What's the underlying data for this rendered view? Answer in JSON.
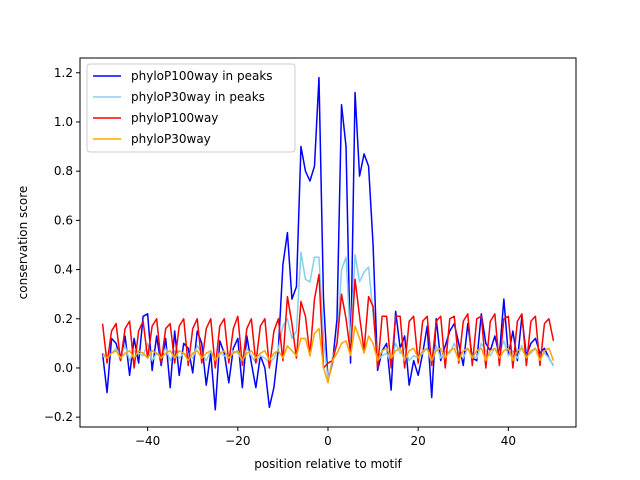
{
  "chart_data": {
    "type": "line",
    "title": "",
    "xlabel": "position relative to motif",
    "ylabel": "conservation score",
    "xlim": [
      -55,
      55
    ],
    "ylim": [
      -0.24,
      1.26
    ],
    "xticks": [
      -40,
      -20,
      0,
      20,
      40
    ],
    "yticks": [
      -0.2,
      0.0,
      0.2,
      0.4,
      0.6,
      0.8,
      1.0,
      1.2
    ],
    "xtick_labels": [
      "−40",
      "−20",
      "0",
      "20",
      "40"
    ],
    "ytick_labels": [
      "−0.2",
      "0.0",
      "0.2",
      "0.4",
      "0.6",
      "0.8",
      "1.0",
      "1.2"
    ],
    "grid": false,
    "legend_position": "top-left",
    "x": [
      -50,
      -49,
      -48,
      -47,
      -46,
      -45,
      -44,
      -43,
      -42,
      -41,
      -40,
      -39,
      -38,
      -37,
      -36,
      -35,
      -34,
      -33,
      -32,
      -31,
      -30,
      -29,
      -28,
      -27,
      -26,
      -25,
      -24,
      -23,
      -22,
      -21,
      -20,
      -19,
      -18,
      -17,
      -16,
      -15,
      -14,
      -13,
      -12,
      -11,
      -10,
      -9,
      -8,
      -7,
      -6,
      -5,
      -4,
      -3,
      -2,
      -1,
      0,
      1,
      2,
      3,
      4,
      5,
      6,
      7,
      8,
      9,
      10,
      11,
      12,
      13,
      14,
      15,
      16,
      17,
      18,
      19,
      20,
      21,
      22,
      23,
      24,
      25,
      26,
      27,
      28,
      29,
      30,
      31,
      32,
      33,
      34,
      35,
      36,
      37,
      38,
      39,
      40,
      41,
      42,
      43,
      44,
      45,
      46,
      47,
      48,
      49,
      50
    ],
    "series": [
      {
        "name": "phyloP100way in peaks",
        "color": "#0000ff",
        "values": [
          0.06,
          -0.1,
          0.12,
          0.1,
          0.03,
          0.13,
          -0.03,
          0.12,
          0.02,
          0.21,
          0.22,
          -0.01,
          0.13,
          0.01,
          0.12,
          -0.08,
          0.15,
          -0.03,
          0.1,
          0.08,
          -0.02,
          0.15,
          0.1,
          -0.07,
          0.06,
          -0.17,
          0.11,
          0.06,
          -0.06,
          0.08,
          0.12,
          -0.08,
          0.13,
          0.02,
          -0.08,
          0.05,
          0.0,
          -0.16,
          -0.08,
          0.08,
          0.42,
          0.55,
          0.28,
          0.33,
          0.9,
          0.8,
          0.76,
          0.82,
          1.18,
          0.28,
          -0.05,
          0.02,
          0.2,
          1.07,
          0.9,
          0.02,
          1.12,
          0.78,
          0.87,
          0.82,
          0.5,
          -0.01,
          0.07,
          0.1,
          -0.09,
          0.23,
          0.08,
          0.13,
          -0.07,
          0.03,
          -0.03,
          0.06,
          0.17,
          -0.12,
          0.2,
          0.03,
          0.09,
          0.15,
          0.18,
          0.1,
          0.01,
          0.18,
          0.04,
          0.03,
          0.22,
          0.1,
          0.07,
          0.13,
          0.05,
          0.28,
          0.05,
          0.15,
          0.03,
          0.21,
          0.05,
          0.1,
          0.12,
          0.06,
          0.08,
          0.04,
          0.01
        ]
      },
      {
        "name": "phyloP30way in peaks",
        "color": "#87ceeb",
        "values": [
          0.05,
          0.04,
          0.06,
          0.08,
          0.05,
          0.09,
          0.03,
          0.07,
          0.06,
          0.05,
          0.1,
          0.03,
          0.06,
          0.05,
          0.08,
          0.03,
          0.07,
          0.04,
          0.06,
          0.05,
          0.04,
          0.09,
          0.06,
          0.03,
          0.07,
          0.02,
          0.06,
          0.05,
          0.04,
          0.07,
          0.06,
          0.03,
          0.08,
          0.05,
          0.02,
          0.05,
          0.04,
          0.02,
          0.04,
          0.08,
          0.17,
          0.2,
          0.12,
          0.15,
          0.47,
          0.36,
          0.35,
          0.45,
          0.45,
          0.12,
          -0.05,
          0.04,
          0.1,
          0.4,
          0.45,
          0.1,
          0.46,
          0.35,
          0.39,
          0.41,
          0.22,
          0.03,
          0.05,
          0.06,
          0.02,
          0.1,
          0.06,
          0.08,
          0.03,
          0.05,
          0.04,
          0.06,
          0.08,
          0.02,
          0.09,
          0.04,
          0.07,
          0.06,
          0.1,
          0.06,
          0.04,
          0.08,
          0.05,
          0.04,
          0.1,
          0.07,
          0.05,
          0.08,
          0.06,
          0.11,
          0.05,
          0.07,
          0.04,
          0.09,
          0.05,
          0.06,
          0.08,
          0.05,
          0.06,
          0.04,
          0.01
        ]
      },
      {
        "name": "phyloP100way",
        "color": "#ff0000",
        "values": [
          0.18,
          0.02,
          0.15,
          0.18,
          0.03,
          0.16,
          0.19,
          0.0,
          0.15,
          0.19,
          0.04,
          0.17,
          0.2,
          0.02,
          0.16,
          0.18,
          0.02,
          0.17,
          0.2,
          0.01,
          0.16,
          0.2,
          0.02,
          0.16,
          0.2,
          0.0,
          0.17,
          0.2,
          0.02,
          0.16,
          0.21,
          0.01,
          0.16,
          0.2,
          0.02,
          0.17,
          0.2,
          0.0,
          0.15,
          0.2,
          0.03,
          0.29,
          0.18,
          0.04,
          0.27,
          0.21,
          0.05,
          0.28,
          0.38,
          0.0,
          0.02,
          0.03,
          0.1,
          0.3,
          0.2,
          0.06,
          0.36,
          0.21,
          0.07,
          0.29,
          0.25,
          0.0,
          0.21,
          0.21,
          0.0,
          0.21,
          0.21,
          0.0,
          0.19,
          0.21,
          0.02,
          0.19,
          0.21,
          0.01,
          0.19,
          0.21,
          0.0,
          0.2,
          0.21,
          0.02,
          0.19,
          0.22,
          0.01,
          0.2,
          0.21,
          0.0,
          0.19,
          0.22,
          0.01,
          0.2,
          0.21,
          0.0,
          0.19,
          0.22,
          0.01,
          0.19,
          0.21,
          0.01,
          0.18,
          0.2,
          0.11
        ]
      },
      {
        "name": "phyloP30way",
        "color": "#ffa500",
        "values": [
          0.06,
          0.04,
          0.06,
          0.07,
          0.04,
          0.06,
          0.07,
          0.04,
          0.07,
          0.06,
          0.04,
          0.07,
          0.06,
          0.04,
          0.06,
          0.07,
          0.04,
          0.07,
          0.06,
          0.03,
          0.06,
          0.07,
          0.04,
          0.06,
          0.07,
          0.03,
          0.06,
          0.07,
          0.04,
          0.06,
          0.07,
          0.03,
          0.06,
          0.07,
          0.04,
          0.06,
          0.07,
          0.03,
          0.06,
          0.07,
          0.04,
          0.09,
          0.07,
          0.05,
          0.12,
          0.12,
          0.05,
          0.14,
          0.16,
          0.0,
          -0.06,
          0.03,
          0.06,
          0.1,
          0.11,
          0.05,
          0.17,
          0.12,
          0.06,
          0.13,
          0.1,
          0.03,
          0.07,
          0.08,
          0.04,
          0.07,
          0.08,
          0.03,
          0.07,
          0.08,
          0.04,
          0.07,
          0.08,
          0.03,
          0.07,
          0.08,
          0.04,
          0.07,
          0.08,
          0.03,
          0.07,
          0.08,
          0.04,
          0.07,
          0.08,
          0.03,
          0.07,
          0.08,
          0.04,
          0.07,
          0.08,
          0.03,
          0.07,
          0.08,
          0.04,
          0.07,
          0.08,
          0.03,
          0.07,
          0.08,
          0.03
        ]
      }
    ]
  }
}
